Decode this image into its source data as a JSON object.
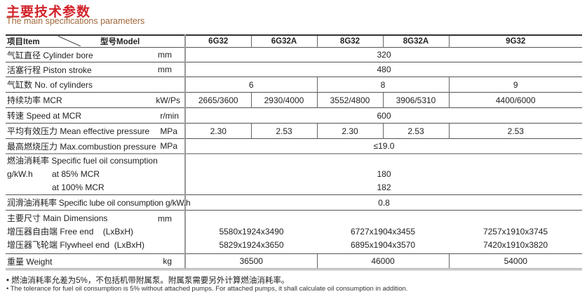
{
  "title": "主要技术参数",
  "subtitle": "The main specifications parameters",
  "header": {
    "item": "项目Item",
    "model": "型号Model",
    "models": [
      "6G32",
      "6G32A",
      "8G32",
      "8G32A",
      "9G32"
    ]
  },
  "rows": {
    "bore": {
      "label": "气缸直径 Cylinder bore",
      "unit": "mm",
      "value": "320"
    },
    "stroke": {
      "label": "活塞行程 Piston stroke",
      "unit": "mm",
      "value": "480"
    },
    "cylinders": {
      "label": "气缸数 No. of cylinders",
      "values": [
        "6",
        "8",
        "9"
      ]
    },
    "mcr": {
      "label": "持续功率 MCR",
      "unit": "kW/Ps",
      "values": [
        "2665/3600",
        "2930/4000",
        "3552/4800",
        "3906/5310",
        "4400/6000"
      ]
    },
    "speed": {
      "label": "转速 Speed at MCR",
      "unit": "r/min",
      "value": "600"
    },
    "mep": {
      "label": "平均有效压力 Mean effective pressure",
      "unit": "MPa",
      "values": [
        "2.30",
        "2.53",
        "2.30",
        "2.53",
        "2.53"
      ]
    },
    "pmax": {
      "label": "最高燃烧压力  Max.combustion pressure",
      "unit": "MPa",
      "value": "≤19.0"
    },
    "fuel": {
      "label": "燃油消耗率  Specific fuel oil consumption  g/kW.h",
      "sub1": "at 85% MCR",
      "sub2": "at 100% MCR",
      "v1": "180",
      "v2": "182"
    },
    "lube": {
      "label": "润滑油消耗率 Specific lube oil consumption g/kW.h",
      "value": "0.8"
    },
    "dims": {
      "label": "主要尺寸  Main Dimensions",
      "unit": "mm",
      "free_label": "增压器自由端 Free end    (LxBxH)",
      "fly_label": "增压器飞轮端 Flywheel end  (LxBxH)",
      "free": [
        "5580x1924x3490",
        "6727x1904x3455",
        "7257x1910x3745"
      ],
      "fly": [
        "5829x1924x3650",
        "6895x1904x3570",
        "7420x1910x3820"
      ]
    },
    "weight": {
      "label": "重量 Weight",
      "unit": "kg",
      "values": [
        "36500",
        "46000",
        "54000"
      ]
    }
  },
  "notes": {
    "cn": "• 燃油消耗率允差为5%，不包括机带附属泵。附属泵需要另外计算燃油消耗率。",
    "en": "• The tolerance for fuel oil consumption is 5% without attached pumps. For attached pumps, it shall calculate oil consumption in addition."
  },
  "colors": {
    "title": "#d2232a",
    "subtitle": "#a0683a"
  }
}
